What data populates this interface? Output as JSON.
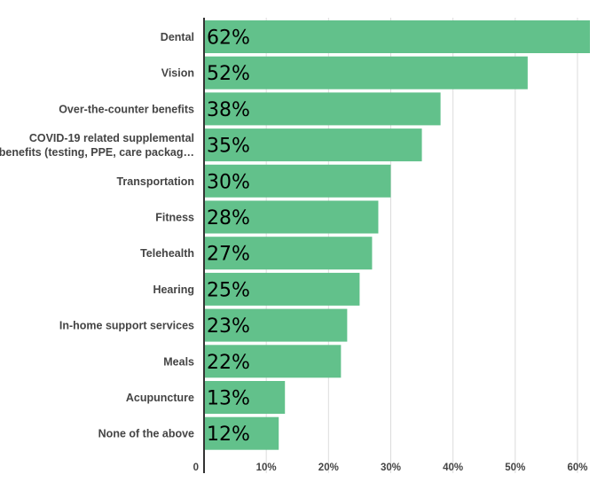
{
  "chart_data": {
    "type": "bar",
    "orientation": "horizontal",
    "categories": [
      [
        "Dental"
      ],
      [
        "Vision"
      ],
      [
        "Over-the-counter benefits"
      ],
      [
        "COVID-19 related supplemental",
        "benefits (testing, PPE, care packag…"
      ],
      [
        "Transportation"
      ],
      [
        "Fitness"
      ],
      [
        "Telehealth"
      ],
      [
        "Hearing"
      ],
      [
        "In-home support services"
      ],
      [
        "Meals"
      ],
      [
        "Acupuncture"
      ],
      [
        "None of the above"
      ]
    ],
    "values": [
      62,
      52,
      38,
      35,
      30,
      28,
      27,
      25,
      23,
      22,
      13,
      12
    ],
    "value_labels": [
      "62%",
      "52%",
      "38%",
      "35%",
      "30%",
      "28%",
      "27%",
      "25%",
      "23%",
      "22%",
      "13%",
      "12%"
    ],
    "x_ticks": [
      0,
      10,
      20,
      30,
      40,
      50,
      60
    ],
    "x_tick_labels": [
      "0",
      "10%",
      "20%",
      "30%",
      "40%",
      "50%",
      "60%"
    ],
    "xlim": [
      0,
      62
    ],
    "grid": true,
    "colors": {
      "bar": "#62c18b",
      "grid": "#dcdcdc",
      "axis": "#333333"
    }
  }
}
